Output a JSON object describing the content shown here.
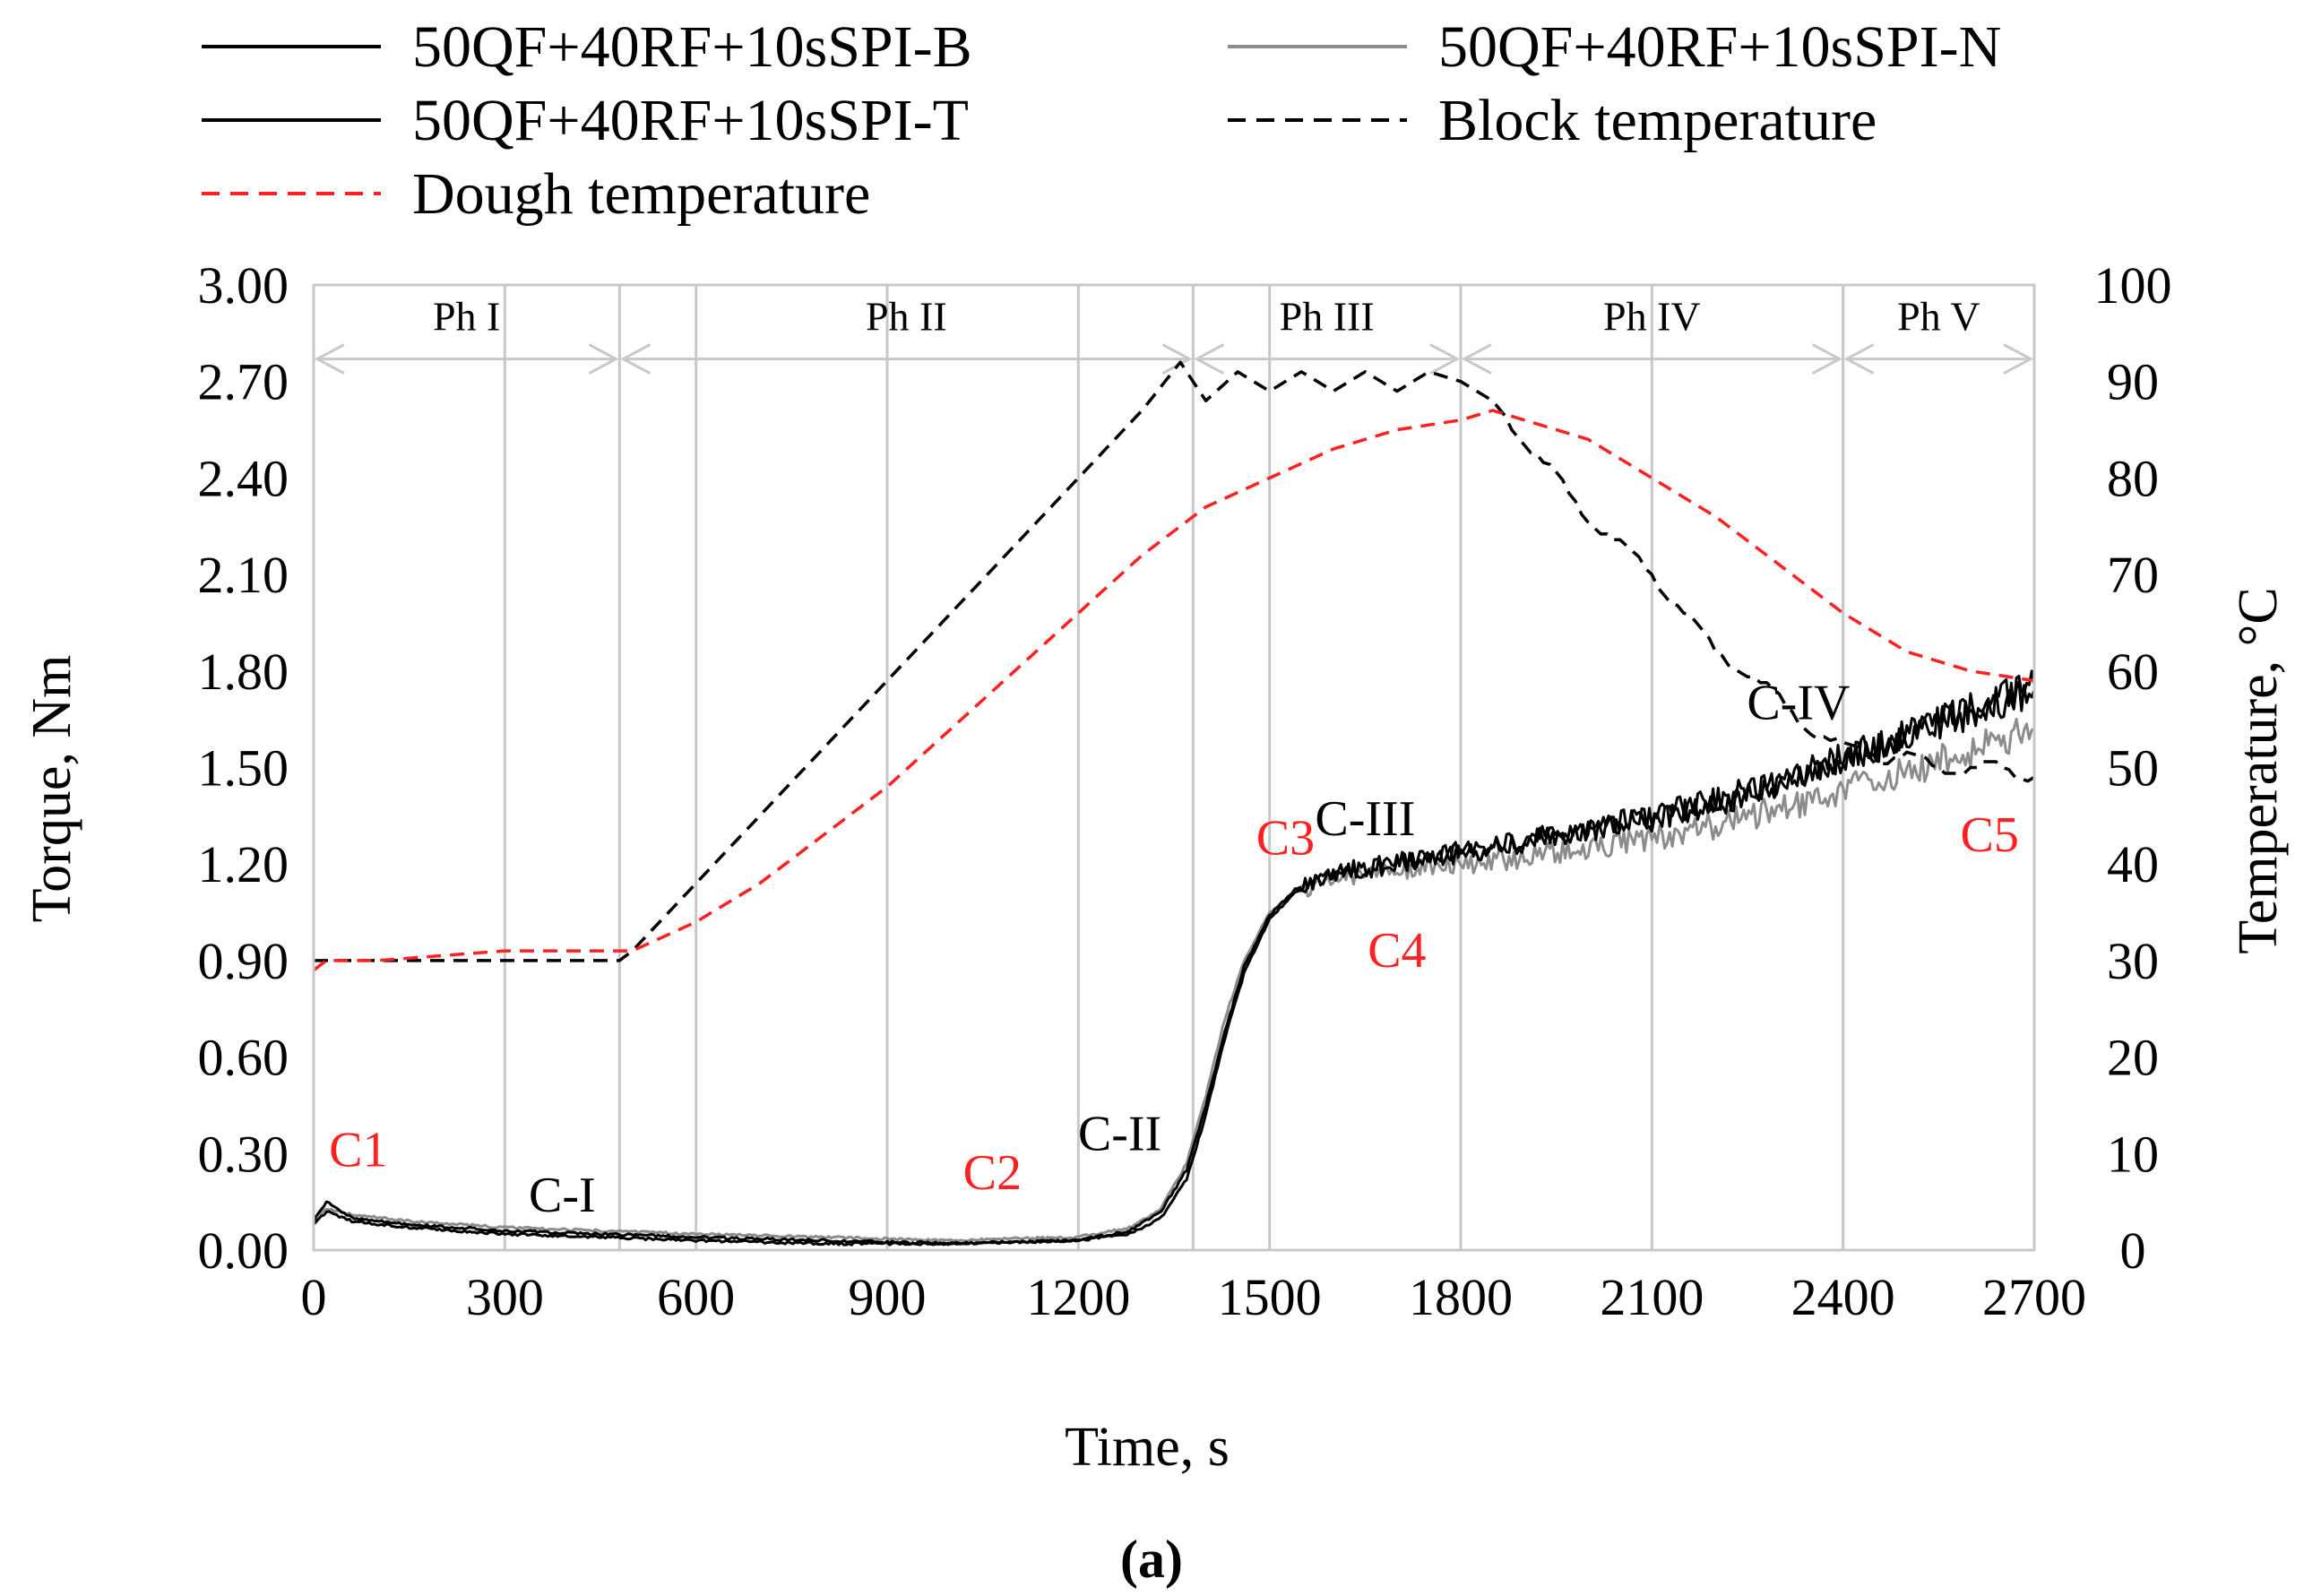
{
  "chart_data": {
    "type": "line",
    "title": "",
    "xlabel": "Time, s",
    "ylabel": "Torque, Nm",
    "y2label": "Temperature, °C",
    "subfigure_label": "(a)",
    "xlim": [
      0,
      2700
    ],
    "ylim": [
      0,
      3.0
    ],
    "y2lim": [
      0,
      100
    ],
    "grid": "vertical",
    "x_ticks": [
      "0",
      "300",
      "600",
      "900",
      "1200",
      "1500",
      "1800",
      "2100",
      "2400",
      "2700"
    ],
    "y_ticks": [
      "0.00",
      "0.30",
      "0.60",
      "0.90",
      "1.20",
      "1.50",
      "1.80",
      "2.10",
      "2.40",
      "2.70",
      "3.00"
    ],
    "y2_ticks": [
      "0",
      "10",
      "20",
      "30",
      "40",
      "50",
      "60",
      "70",
      "80",
      "90",
      "100"
    ],
    "phase_boundaries": [
      0,
      480,
      1380,
      1800,
      2400,
      2700
    ],
    "phases": [
      "Ph I",
      "Ph II",
      "Ph III",
      "Ph IV",
      "Ph V"
    ],
    "series": [
      {
        "name": "50QF+40RF+10sSPI-B",
        "axis": "torque",
        "color": "#000000",
        "style": "solid",
        "x": [
          0,
          20,
          60,
          150,
          300,
          450,
          600,
          800,
          1000,
          1200,
          1280,
          1330,
          1370,
          1400,
          1430,
          1460,
          1500,
          1540,
          1580,
          1620,
          1700,
          1800,
          1900,
          2000,
          2100,
          2200,
          2300,
          2400,
          2500,
          2600,
          2700
        ],
        "values": [
          0.09,
          0.15,
          0.1,
          0.08,
          0.06,
          0.05,
          0.04,
          0.03,
          0.02,
          0.03,
          0.06,
          0.12,
          0.25,
          0.45,
          0.68,
          0.88,
          1.04,
          1.12,
          1.16,
          1.18,
          1.21,
          1.24,
          1.28,
          1.31,
          1.35,
          1.4,
          1.46,
          1.53,
          1.6,
          1.67,
          1.74
        ]
      },
      {
        "name": "50QF+40RF+10sSPI-N",
        "axis": "torque",
        "color": "#8c8c8c",
        "style": "solid",
        "x": [
          0,
          20,
          60,
          150,
          300,
          450,
          600,
          800,
          1000,
          1200,
          1280,
          1330,
          1370,
          1400,
          1430,
          1460,
          1500,
          1540,
          1580,
          1620,
          1700,
          1800,
          1900,
          2000,
          2100,
          2200,
          2300,
          2400,
          2500,
          2600,
          2700
        ],
        "values": [
          0.1,
          0.13,
          0.11,
          0.09,
          0.07,
          0.06,
          0.05,
          0.04,
          0.03,
          0.04,
          0.07,
          0.13,
          0.27,
          0.48,
          0.72,
          0.9,
          1.05,
          1.11,
          1.14,
          1.16,
          1.18,
          1.2,
          1.22,
          1.25,
          1.28,
          1.32,
          1.37,
          1.43,
          1.49,
          1.55,
          1.62
        ]
      },
      {
        "name": "50QF+40RF+10sSPI-T",
        "axis": "torque",
        "color": "#000000",
        "style": "solid",
        "x": [
          0,
          20,
          60,
          150,
          300,
          450,
          600,
          800,
          1000,
          1200,
          1280,
          1330,
          1370,
          1400,
          1430,
          1460,
          1500,
          1540,
          1580,
          1620,
          1700,
          1800,
          1900,
          2000,
          2100,
          2200,
          2300,
          2400,
          2500,
          2600,
          2700
        ],
        "values": [
          0.08,
          0.12,
          0.09,
          0.07,
          0.05,
          0.04,
          0.03,
          0.02,
          0.02,
          0.03,
          0.05,
          0.1,
          0.22,
          0.42,
          0.66,
          0.86,
          1.03,
          1.11,
          1.15,
          1.17,
          1.2,
          1.23,
          1.27,
          1.3,
          1.34,
          1.39,
          1.45,
          1.52,
          1.6,
          1.68,
          1.76
        ]
      },
      {
        "name": "Block temperature",
        "axis": "temperature",
        "color": "#000000",
        "style": "dashed",
        "x": [
          0,
          480,
          500,
          600,
          800,
          1000,
          1200,
          1300,
          1360,
          1400,
          1450,
          1500,
          1550,
          1600,
          1650,
          1700,
          1750,
          1800,
          1850,
          1900,
          1950,
          2000,
          2050,
          2100,
          2150,
          2200,
          2250,
          2300,
          2350,
          2400,
          2450,
          2500,
          2550,
          2600,
          2650,
          2700
        ],
        "values": [
          30,
          30,
          31,
          38,
          52,
          66,
          80,
          87,
          92,
          88,
          91,
          89,
          91,
          89,
          91,
          89,
          91,
          90,
          88,
          84,
          80,
          76,
          73,
          70,
          66,
          62,
          60,
          57,
          54,
          52,
          51,
          51,
          50,
          50,
          50,
          49
        ]
      },
      {
        "name": "Dough temperature",
        "axis": "temperature",
        "color": "#ff2020",
        "style": "dashed",
        "x": [
          0,
          20,
          100,
          300,
          500,
          600,
          700,
          800,
          900,
          1000,
          1100,
          1200,
          1300,
          1400,
          1500,
          1600,
          1700,
          1800,
          1850,
          1900,
          2000,
          2100,
          2200,
          2300,
          2400,
          2500,
          2600,
          2700
        ],
        "values": [
          29,
          30,
          30,
          31,
          31,
          34,
          38,
          43,
          48,
          54,
          60,
          66,
          72,
          77,
          80,
          83,
          85,
          86,
          87,
          86,
          84,
          80,
          76,
          71,
          66,
          62,
          60,
          59
        ]
      }
    ],
    "legend": {
      "position": "top",
      "entries": [
        {
          "label": "50QF+40RF+10sSPI-B",
          "color": "#000000",
          "style": "solid"
        },
        {
          "label": "50QF+40RF+10sSPI-N",
          "color": "#8c8c8c",
          "style": "solid"
        },
        {
          "label": "50QF+40RF+10sSPI-T",
          "color": "#000000",
          "style": "solid"
        },
        {
          "label": "Block temperature",
          "color": "#000000",
          "style": "dashed"
        },
        {
          "label": "Dough temperature",
          "color": "#ff2020",
          "style": "dashed"
        }
      ]
    },
    "annotations": [
      {
        "text": "C1",
        "color": "#ff2020",
        "x": 70,
        "y": 0.26
      },
      {
        "text": "C-I",
        "color": "#000000",
        "x": 390,
        "y": 0.12
      },
      {
        "text": "C2",
        "color": "#ff2020",
        "x": 1065,
        "y": 0.19
      },
      {
        "text": "C-II",
        "color": "#000000",
        "x": 1265,
        "y": 0.31
      },
      {
        "text": "C3",
        "color": "#ff2020",
        "x": 1525,
        "y": 1.23
      },
      {
        "text": "C-III",
        "color": "#000000",
        "x": 1650,
        "y": 1.29
      },
      {
        "text": "C4",
        "color": "#ff2020",
        "x": 1700,
        "y": 0.88
      },
      {
        "text": "C-IV",
        "color": "#000000",
        "x": 2330,
        "y": 1.65
      },
      {
        "text": "C5",
        "color": "#ff2020",
        "x": 2630,
        "y": 1.24
      }
    ]
  }
}
